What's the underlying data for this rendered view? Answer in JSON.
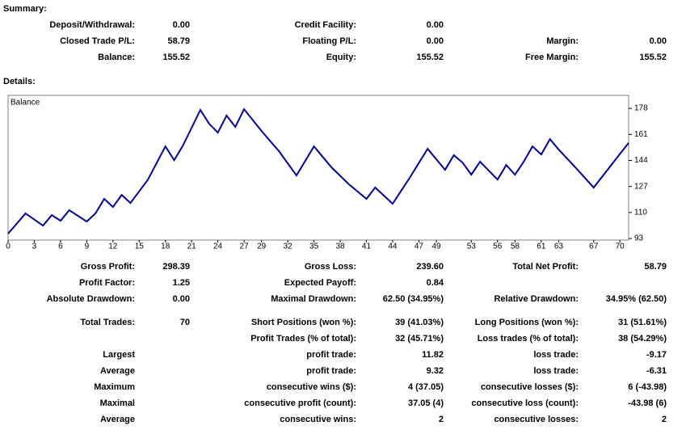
{
  "summary": {
    "title": "Summary:",
    "rows": [
      [
        {
          "label": "Deposit/Withdrawal:",
          "value": "0.00"
        },
        {
          "label": "Credit Facility:",
          "value": "0.00"
        },
        null
      ],
      [
        {
          "label": "Closed Trade P/L:",
          "value": "58.79"
        },
        {
          "label": "Floating P/L:",
          "value": "0.00"
        },
        {
          "label": "Margin:",
          "value": "0.00"
        }
      ],
      [
        {
          "label": "Balance:",
          "value": "155.52"
        },
        {
          "label": "Equity:",
          "value": "155.52"
        },
        {
          "label": "Free Margin:",
          "value": "155.52"
        }
      ]
    ]
  },
  "details": {
    "title": "Details:",
    "rows": [
      [
        {
          "label": "Gross Profit:",
          "value": "298.39"
        },
        {
          "label": "Gross Loss:",
          "value": "239.60"
        },
        {
          "label": "Total Net Profit:",
          "value": "58.79"
        }
      ],
      [
        {
          "label": "Profit Factor:",
          "value": "1.25"
        },
        {
          "label": "Expected Payoff:",
          "value": "0.84"
        },
        null
      ],
      [
        {
          "label": "Absolute Drawdown:",
          "value": "0.00"
        },
        {
          "label": "Maximal Drawdown:",
          "value": "62.50 (34.95%)"
        },
        {
          "label": "Relative Drawdown:",
          "value": "34.95% (62.50)"
        }
      ],
      [
        {
          "label": "Total Trades:",
          "value": "70"
        },
        {
          "label": "Short Positions (won %):",
          "value": "39 (41.03%)"
        },
        {
          "label": "Long Positions (won %):",
          "value": "31 (51.61%)"
        }
      ],
      [
        null,
        {
          "label": "Profit Trades (% of total):",
          "value": "32 (45.71%)"
        },
        {
          "label": "Loss trades (% of total):",
          "value": "38 (54.29%)"
        }
      ],
      [
        {
          "label": "Largest"
        },
        {
          "label": "profit trade:",
          "value": "11.82"
        },
        {
          "label": "loss trade:",
          "value": "-9.17"
        }
      ],
      [
        {
          "label": "Average"
        },
        {
          "label": "profit trade:",
          "value": "9.32"
        },
        {
          "label": "loss trade:",
          "value": "-6.31"
        }
      ],
      [
        {
          "label": "Maximum"
        },
        {
          "label": "consecutive wins ($):",
          "value": "4 (37.05)"
        },
        {
          "label": "consecutive losses ($):",
          "value": "6 (-43.98)"
        }
      ],
      [
        {
          "label": "Maximal"
        },
        {
          "label": "consecutive profit (count):",
          "value": "37.05 (4)"
        },
        {
          "label": "consecutive loss (count):",
          "value": "-43.98 (6)"
        }
      ],
      [
        {
          "label": "Average"
        },
        {
          "label": "consecutive wins:",
          "value": "2"
        },
        {
          "label": "consecutive losses:",
          "value": "2"
        }
      ]
    ]
  },
  "chart_data": {
    "type": "line",
    "label": "Balance",
    "series": [
      {
        "name": "Balance",
        "color": "#00008b",
        "x": [
          0,
          2,
          4,
          5,
          6,
          7,
          9,
          10,
          11,
          12,
          13,
          14,
          16,
          18,
          19,
          20,
          22,
          23,
          24,
          25,
          26,
          27,
          29,
          31,
          33,
          35,
          37,
          39,
          41,
          42,
          44,
          46,
          48,
          50,
          51,
          52,
          53,
          54,
          56,
          57,
          58,
          59,
          60,
          61,
          62,
          63,
          65,
          67,
          71
        ],
        "values": [
          96.2,
          109.4,
          101.4,
          108.3,
          104.6,
          111.5,
          104.1,
          109.4,
          118.9,
          113.6,
          121.5,
          116.2,
          131.5,
          153.2,
          144.2,
          153.7,
          177,
          168,
          162.2,
          173.3,
          165.9,
          177.5,
          163.2,
          150,
          134.2,
          153.2,
          139.5,
          128.4,
          118.9,
          126.3,
          115.7,
          133.1,
          151.6,
          137.9,
          147.4,
          142.6,
          134.7,
          143.2,
          131.5,
          141,
          134.7,
          143.2,
          153.2,
          147.9,
          157.9,
          151.1,
          138.9,
          126.3,
          155.5
        ]
      }
    ],
    "xlim": [
      0,
      71
    ],
    "xticks": [
      0,
      3,
      6,
      9,
      12,
      15,
      18,
      21,
      24,
      27,
      29,
      32,
      35,
      38,
      41,
      44,
      47,
      49,
      53,
      56,
      58,
      61,
      63,
      67,
      70
    ],
    "ylim": [
      92,
      186.5
    ],
    "yticks": [
      93,
      110,
      127,
      144,
      161,
      178
    ]
  }
}
